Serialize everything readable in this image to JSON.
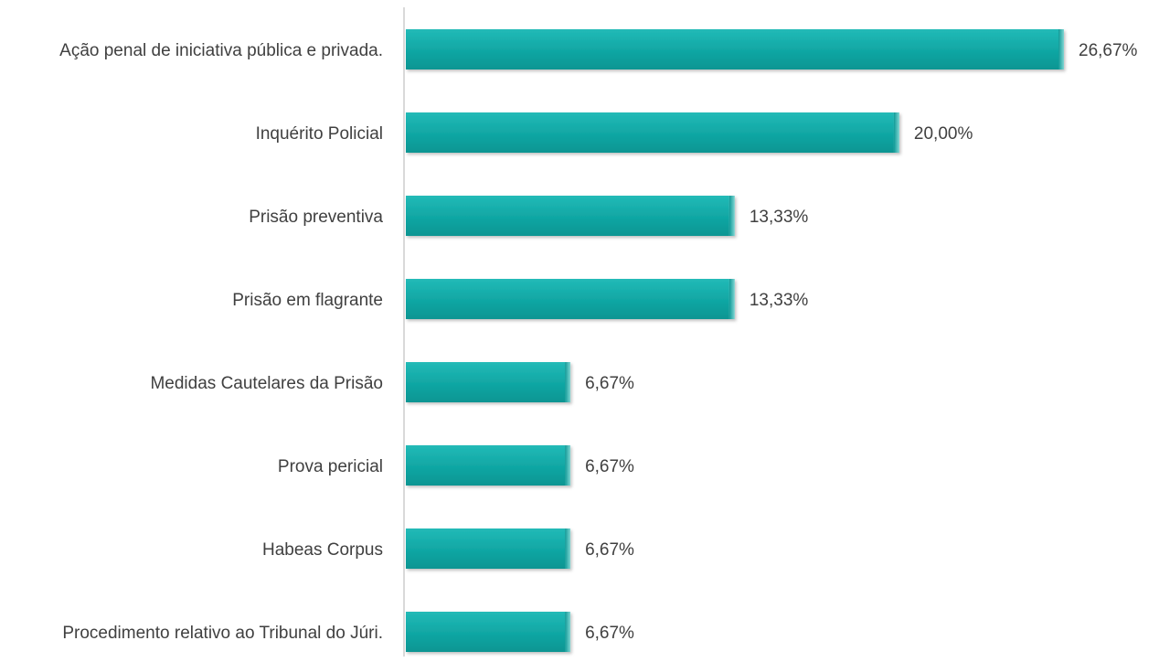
{
  "chart_data": {
    "type": "bar",
    "orientation": "horizontal",
    "title": "",
    "xlabel": "",
    "ylabel": "",
    "categories": [
      "Ação penal de iniciativa pública e privada.",
      "Inquérito Policial",
      "Prisão preventiva",
      "Prisão em flagrante",
      "Medidas Cautelares da Prisão",
      "Prova pericial",
      "Habeas Corpus",
      "Procedimento relativo ao Tribunal do Júri."
    ],
    "values": [
      26.67,
      20.0,
      13.33,
      13.33,
      6.67,
      6.67,
      6.67,
      6.67
    ],
    "value_labels": [
      "26,67%",
      "20,00%",
      "13,33%",
      "13,33%",
      "6,67%",
      "6,67%",
      "6,67%",
      "6,67%"
    ],
    "xlim": [
      0,
      26.67
    ],
    "grid": false,
    "legend": "none",
    "bar_color": "#12a8a5",
    "axis_color": "#d9d9d9"
  }
}
